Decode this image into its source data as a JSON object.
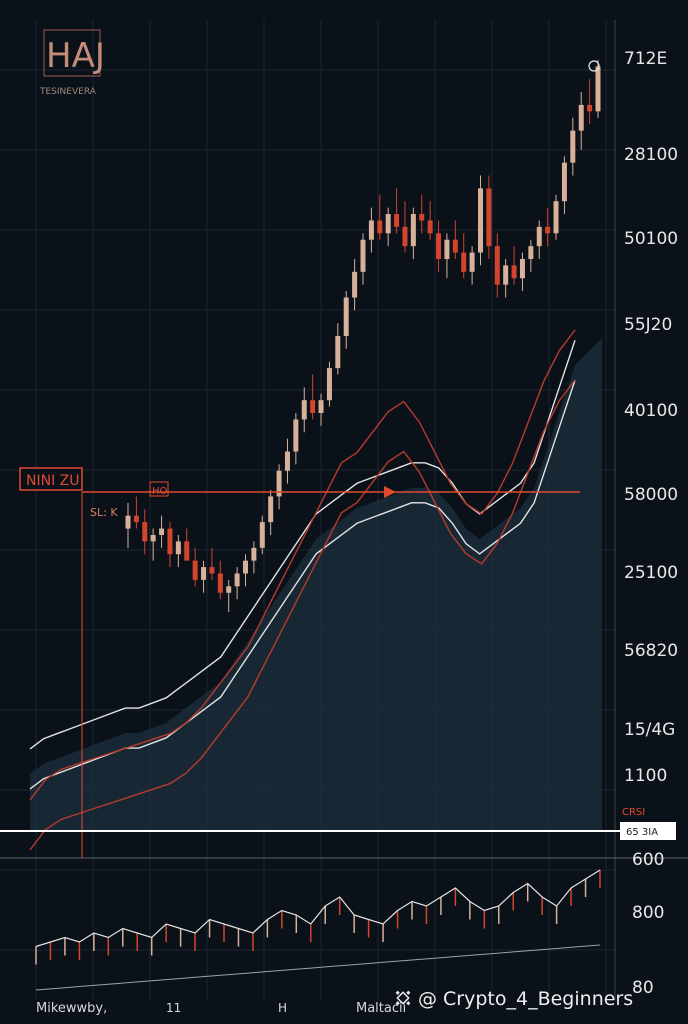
{
  "colors": {
    "background": "#0b1119",
    "grid": "#1b2633",
    "bullish": "#d8b19a",
    "bearish": "#d3442d",
    "area_fill": "#1e2f3d",
    "line_light": "#e3e3e3",
    "line_red": "#b93a2c",
    "accent_red": "#e04a30"
  },
  "header": {
    "logo_text": "HAJ",
    "logo_subtitle": "TESINEVERA",
    "top_right_label": "712E"
  },
  "annotations": {
    "left_box": "NINI ZU",
    "level_tag": "HO",
    "left_note": "SL: K",
    "white_line_tag_top": "CRSI",
    "white_line_tag": "65 3IA"
  },
  "footer": {
    "left_label": "Mikewwby,",
    "mid_label_1": "11",
    "mid_label_2": "H",
    "mid_label_3": "Maltacii"
  },
  "watermark": "@ Crypto_4_Beginners",
  "chart_data": [
    {
      "type": "candlestick",
      "price_axis_labels": [
        "712E",
        "28100",
        "50100",
        "55J20",
        "40100",
        "58000",
        "25100",
        "56820",
        "15/4G",
        "1100"
      ],
      "grid": true,
      "candles_ohlc": [
        [
          58,
          62,
          55,
          60
        ],
        [
          60,
          63,
          58,
          59
        ],
        [
          59,
          61,
          54,
          56
        ],
        [
          56,
          58,
          53,
          57
        ],
        [
          57,
          60,
          55,
          58
        ],
        [
          58,
          59,
          52,
          54
        ],
        [
          54,
          57,
          52,
          56
        ],
        [
          56,
          58,
          53,
          53
        ],
        [
          53,
          55,
          49,
          50
        ],
        [
          50,
          53,
          48,
          52
        ],
        [
          52,
          55,
          50,
          51
        ],
        [
          51,
          53,
          47,
          48
        ],
        [
          48,
          50,
          45,
          49
        ],
        [
          49,
          52,
          47,
          51
        ],
        [
          51,
          54,
          49,
          53
        ],
        [
          53,
          56,
          51,
          55
        ],
        [
          55,
          60,
          54,
          59
        ],
        [
          59,
          64,
          57,
          63
        ],
        [
          63,
          68,
          61,
          67
        ],
        [
          67,
          72,
          65,
          70
        ],
        [
          70,
          76,
          68,
          75
        ],
        [
          75,
          80,
          73,
          78
        ],
        [
          78,
          82,
          75,
          76
        ],
        [
          76,
          79,
          74,
          78
        ],
        [
          78,
          84,
          77,
          83
        ],
        [
          83,
          90,
          82,
          88
        ],
        [
          88,
          95,
          86,
          94
        ],
        [
          94,
          100,
          92,
          98
        ],
        [
          98,
          104,
          96,
          103
        ],
        [
          103,
          108,
          101,
          106
        ],
        [
          106,
          110,
          103,
          104
        ],
        [
          104,
          108,
          102,
          107
        ],
        [
          107,
          111,
          104,
          105
        ],
        [
          105,
          109,
          101,
          102
        ],
        [
          102,
          108,
          100,
          107
        ],
        [
          107,
          110,
          104,
          106
        ],
        [
          106,
          109,
          103,
          104
        ],
        [
          104,
          106,
          98,
          100
        ],
        [
          100,
          104,
          97,
          103
        ],
        [
          103,
          106,
          100,
          101
        ],
        [
          101,
          104,
          97,
          98
        ],
        [
          98,
          102,
          96,
          101
        ],
        [
          101,
          113,
          99,
          111
        ],
        [
          111,
          113,
          100,
          102
        ],
        [
          102,
          104,
          94,
          96
        ],
        [
          96,
          100,
          94,
          99
        ],
        [
          99,
          102,
          96,
          97
        ],
        [
          97,
          101,
          95,
          100
        ],
        [
          100,
          103,
          98,
          102
        ],
        [
          102,
          106,
          100,
          105
        ],
        [
          105,
          108,
          102,
          104
        ],
        [
          104,
          110,
          103,
          109
        ],
        [
          109,
          116,
          107,
          115
        ],
        [
          115,
          122,
          113,
          120
        ],
        [
          120,
          126,
          117,
          124
        ],
        [
          124,
          128,
          121,
          123
        ],
        [
          123,
          131,
          122,
          130
        ]
      ],
      "indicator_lines": {
        "light_ma": [
          40,
          42,
          43,
          44,
          45,
          46,
          47,
          48,
          48,
          49,
          50,
          52,
          54,
          56,
          58,
          62,
          66,
          70,
          74,
          78,
          82,
          86,
          88,
          90,
          92,
          93,
          94,
          95,
          96,
          96,
          95,
          92,
          88,
          86,
          88,
          90,
          92,
          96,
          104,
          112,
          120
        ],
        "red_ma": [
          30,
          34,
          36,
          37,
          38,
          39,
          40,
          41,
          42,
          43,
          45,
          48,
          52,
          56,
          60,
          66,
          72,
          78,
          84,
          90,
          96,
          98,
          102,
          106,
          108,
          104,
          98,
          92,
          88,
          86,
          90,
          96,
          104,
          112,
          118,
          122
        ]
      },
      "volume": [
        3,
        4,
        5,
        4,
        6,
        5,
        7,
        6,
        5,
        8,
        7,
        6,
        9,
        8,
        7,
        6,
        9,
        11,
        10,
        8,
        12,
        14,
        10,
        9,
        8,
        11,
        13,
        12,
        14,
        16,
        13,
        11,
        12,
        15,
        17,
        14,
        12,
        16,
        18,
        20
      ],
      "lower_panel_labels": [
        "600",
        "800",
        "80"
      ]
    }
  ]
}
